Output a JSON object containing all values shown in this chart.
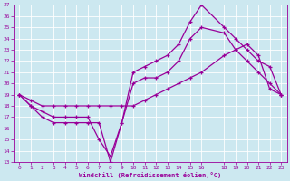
{
  "background_color": "#cce8f0",
  "grid_color": "#ffffff",
  "line_color": "#990099",
  "marker": "+",
  "markersize": 3.5,
  "linewidth": 0.9,
  "xlabel": "Windchill (Refroidissement éolien,°C)",
  "tick_color": "#990099",
  "label_color": "#990099",
  "ylim": [
    13,
    27
  ],
  "xlim": [
    -0.5,
    23.5
  ],
  "yticks": [
    13,
    14,
    15,
    16,
    17,
    18,
    19,
    20,
    21,
    22,
    23,
    24,
    25,
    26,
    27
  ],
  "xticks": [
    0,
    1,
    2,
    3,
    4,
    5,
    6,
    7,
    8,
    9,
    10,
    11,
    12,
    13,
    14,
    15,
    16,
    18,
    19,
    20,
    21,
    22,
    23
  ],
  "series": [
    {
      "x": [
        0,
        1,
        2,
        3,
        4,
        5,
        6,
        7,
        8,
        9,
        10,
        11,
        12,
        13,
        14,
        15,
        16,
        18,
        19,
        20,
        21,
        22,
        23
      ],
      "y": [
        19,
        18,
        17,
        16.5,
        16.5,
        16.5,
        16.5,
        16.5,
        13,
        16.5,
        20,
        20.5,
        20.5,
        21,
        22,
        24,
        25,
        24.5,
        23,
        22,
        21,
        20,
        19
      ]
    },
    {
      "x": [
        0,
        1,
        2,
        3,
        4,
        5,
        6,
        7,
        8,
        9,
        10,
        11,
        12,
        13,
        14,
        15,
        16,
        18,
        19,
        20,
        21,
        22,
        23
      ],
      "y": [
        19,
        18,
        17.5,
        17,
        17,
        17,
        17,
        15,
        13.5,
        16.5,
        21,
        21.5,
        22,
        22.5,
        23.5,
        25.5,
        27,
        25,
        24,
        23,
        22,
        21.5,
        19
      ]
    },
    {
      "x": [
        0,
        1,
        2,
        3,
        4,
        5,
        6,
        7,
        8,
        9,
        10,
        11,
        12,
        13,
        14,
        15,
        16,
        18,
        19,
        20,
        21,
        22,
        23
      ],
      "y": [
        19,
        18.5,
        18,
        18,
        18,
        18,
        18,
        18,
        18,
        18,
        18,
        18.5,
        19,
        19.5,
        20,
        20.5,
        21,
        22.5,
        23,
        23.5,
        22.5,
        19.5,
        19
      ]
    }
  ]
}
